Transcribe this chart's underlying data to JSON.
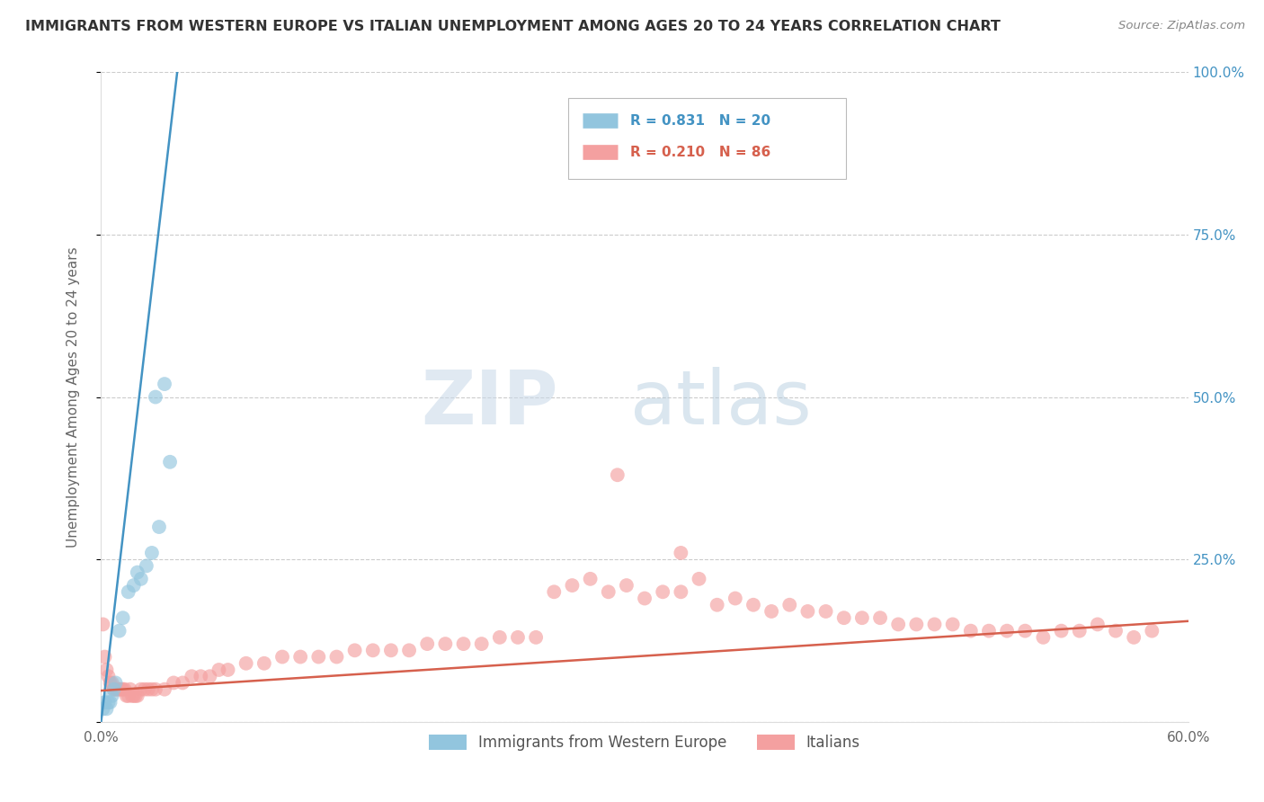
{
  "title": "IMMIGRANTS FROM WESTERN EUROPE VS ITALIAN UNEMPLOYMENT AMONG AGES 20 TO 24 YEARS CORRELATION CHART",
  "source": "Source: ZipAtlas.com",
  "ylabel": "Unemployment Among Ages 20 to 24 years",
  "xlim": [
    0.0,
    0.6
  ],
  "ylim": [
    0.0,
    1.0
  ],
  "x_ticks": [
    0.0,
    0.1,
    0.2,
    0.3,
    0.4,
    0.5,
    0.6
  ],
  "x_tick_labels": [
    "0.0%",
    "",
    "",
    "",
    "",
    "",
    "60.0%"
  ],
  "y_ticks": [
    0.0,
    0.25,
    0.5,
    0.75,
    1.0
  ],
  "y_tick_labels_left": [
    "",
    "",
    "",
    "",
    ""
  ],
  "y_tick_labels_right": [
    "",
    "25.0%",
    "50.0%",
    "75.0%",
    "100.0%"
  ],
  "blue_color": "#92c5de",
  "pink_color": "#f4a0a0",
  "blue_line_color": "#4393c3",
  "pink_line_color": "#d6604d",
  "R_blue": 0.831,
  "N_blue": 20,
  "R_pink": 0.21,
  "N_pink": 86,
  "legend_label_blue": "Immigrants from Western Europe",
  "legend_label_pink": "Italians",
  "watermark_zip": "ZIP",
  "watermark_atlas": "atlas",
  "blue_scatter_x": [
    0.001,
    0.002,
    0.003,
    0.004,
    0.005,
    0.006,
    0.007,
    0.008,
    0.01,
    0.012,
    0.015,
    0.018,
    0.02,
    0.022,
    0.025,
    0.028,
    0.032,
    0.038,
    0.03,
    0.035
  ],
  "blue_scatter_y": [
    0.02,
    0.03,
    0.02,
    0.03,
    0.03,
    0.04,
    0.05,
    0.06,
    0.14,
    0.16,
    0.2,
    0.21,
    0.23,
    0.22,
    0.24,
    0.26,
    0.3,
    0.4,
    0.5,
    0.52
  ],
  "pink_scatter_x": [
    0.001,
    0.002,
    0.003,
    0.004,
    0.005,
    0.006,
    0.007,
    0.008,
    0.009,
    0.01,
    0.011,
    0.012,
    0.013,
    0.014,
    0.015,
    0.016,
    0.017,
    0.018,
    0.019,
    0.02,
    0.022,
    0.024,
    0.026,
    0.028,
    0.03,
    0.035,
    0.04,
    0.045,
    0.05,
    0.055,
    0.06,
    0.065,
    0.07,
    0.08,
    0.09,
    0.1,
    0.11,
    0.12,
    0.13,
    0.14,
    0.15,
    0.16,
    0.17,
    0.18,
    0.19,
    0.2,
    0.21,
    0.22,
    0.23,
    0.24,
    0.25,
    0.26,
    0.27,
    0.28,
    0.29,
    0.3,
    0.31,
    0.32,
    0.33,
    0.34,
    0.35,
    0.36,
    0.37,
    0.38,
    0.39,
    0.4,
    0.41,
    0.42,
    0.43,
    0.44,
    0.45,
    0.46,
    0.47,
    0.48,
    0.49,
    0.5,
    0.51,
    0.52,
    0.53,
    0.54,
    0.55,
    0.56,
    0.57,
    0.58,
    0.285,
    0.32
  ],
  "pink_scatter_y": [
    0.15,
    0.1,
    0.08,
    0.07,
    0.06,
    0.06,
    0.05,
    0.05,
    0.05,
    0.05,
    0.05,
    0.05,
    0.05,
    0.04,
    0.04,
    0.05,
    0.04,
    0.04,
    0.04,
    0.04,
    0.05,
    0.05,
    0.05,
    0.05,
    0.05,
    0.05,
    0.06,
    0.06,
    0.07,
    0.07,
    0.07,
    0.08,
    0.08,
    0.09,
    0.09,
    0.1,
    0.1,
    0.1,
    0.1,
    0.11,
    0.11,
    0.11,
    0.11,
    0.12,
    0.12,
    0.12,
    0.12,
    0.13,
    0.13,
    0.13,
    0.2,
    0.21,
    0.22,
    0.2,
    0.21,
    0.19,
    0.2,
    0.2,
    0.22,
    0.18,
    0.19,
    0.18,
    0.17,
    0.18,
    0.17,
    0.17,
    0.16,
    0.16,
    0.16,
    0.15,
    0.15,
    0.15,
    0.15,
    0.14,
    0.14,
    0.14,
    0.14,
    0.13,
    0.14,
    0.14,
    0.15,
    0.14,
    0.13,
    0.14,
    0.38,
    0.26
  ],
  "blue_line_x": [
    0.0,
    0.042
  ],
  "blue_line_y": [
    0.0,
    1.0
  ],
  "pink_line_x": [
    0.0,
    0.6
  ],
  "pink_line_y": [
    0.048,
    0.155
  ]
}
